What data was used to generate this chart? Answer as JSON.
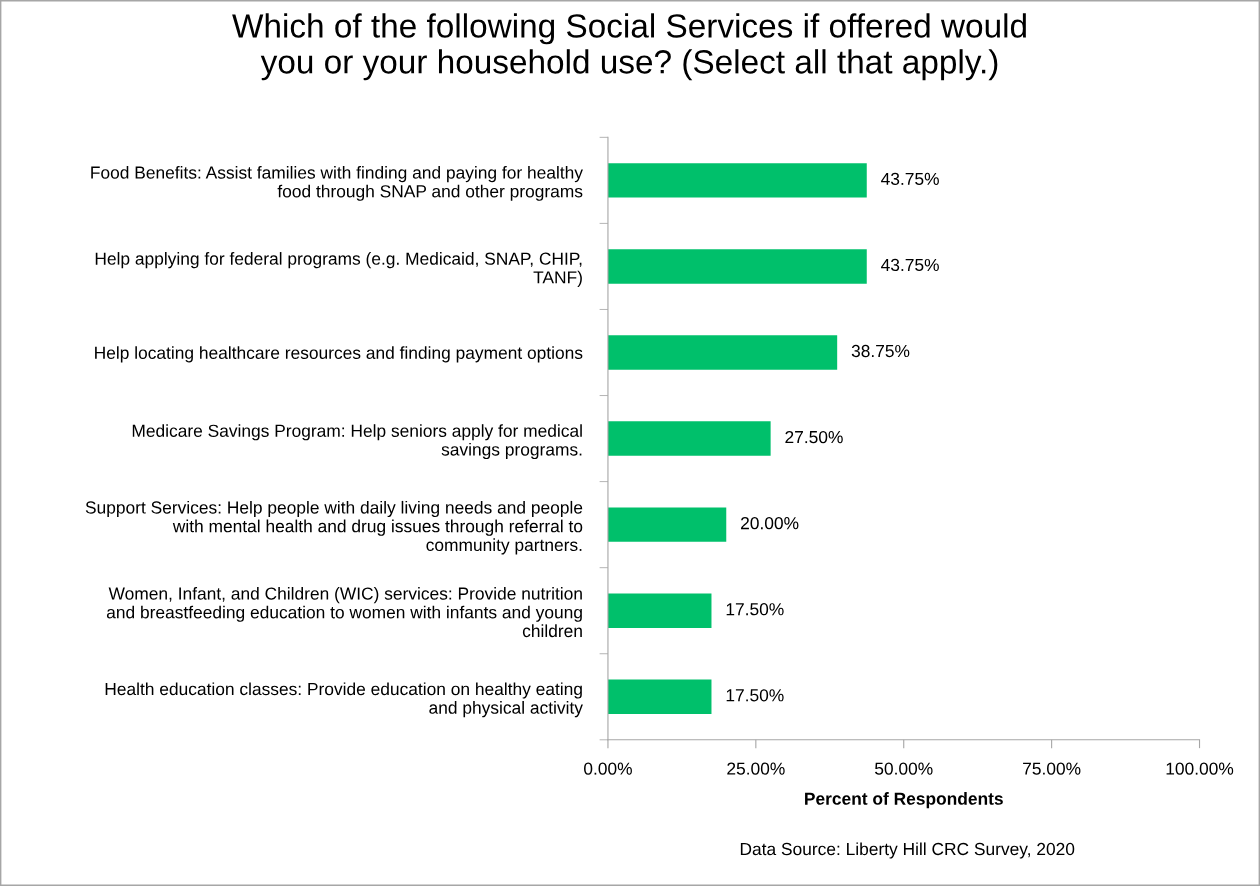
{
  "chart_data": {
    "type": "bar",
    "orientation": "horizontal",
    "title": "Which of the following Social Services if offered would\nyou or your household use? (Select all that apply.)",
    "xlabel": "Percent of Respondents",
    "categories": [
      "Food Benefits: Assist families with finding and paying for healthy\nfood through SNAP and other programs",
      "Help applying for federal programs (e.g. Medicaid, SNAP, CHIP,\nTANF)",
      "Help locating healthcare resources and finding payment options",
      "Medicare Savings Program: Help seniors apply for medical\nsavings programs.",
      "Support Services: Help people with daily living needs and people\nwith mental health and drug issues through referral to\ncommunity partners.",
      "Women, Infant, and Children (WIC) services: Provide nutrition\nand breastfeeding education to women with infants and young\nchildren",
      "Health education classes: Provide education on healthy eating\nand physical activity"
    ],
    "values": [
      43.75,
      43.75,
      38.75,
      27.5,
      20.0,
      17.5,
      17.5
    ],
    "value_labels": [
      "43.75%",
      "43.75%",
      "38.75%",
      "27.50%",
      "20.00%",
      "17.50%",
      "17.50%"
    ],
    "color": "#00c06b",
    "xlim": [
      0,
      100
    ],
    "xticks": [
      {
        "value": 0,
        "label": "0.00%"
      },
      {
        "value": 25,
        "label": "25.00%"
      },
      {
        "value": 50,
        "label": "50.00%"
      },
      {
        "value": 75,
        "label": "75.00%"
      },
      {
        "value": 100,
        "label": "100.00%"
      }
    ],
    "grid": false,
    "legend": false,
    "annotations": [
      "Data Source: Liberty Hill CRC Survey, 2020"
    ]
  }
}
